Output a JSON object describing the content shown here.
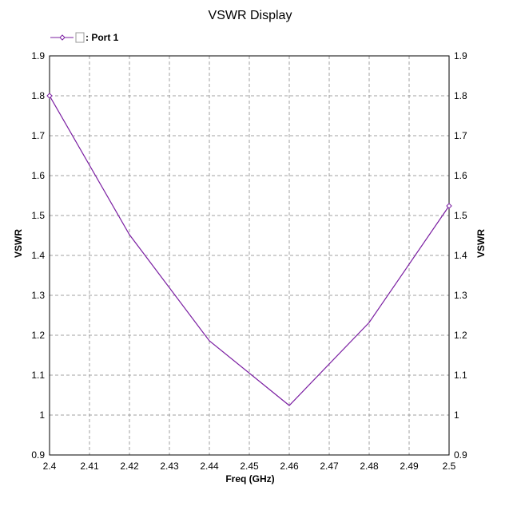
{
  "chart_data": {
    "type": "line",
    "title": "VSWR Display",
    "xlabel": "Freq (GHz)",
    "ylabel": "VSWR",
    "ylabel_right": "VSWR",
    "xlim": [
      2.4,
      2.5
    ],
    "ylim": [
      0.9,
      1.9
    ],
    "x_ticks": [
      "2.4",
      "2.41",
      "2.42",
      "2.43",
      "2.44",
      "2.45",
      "2.46",
      "2.47",
      "2.48",
      "2.49",
      "2.5"
    ],
    "y_ticks": [
      "0.9",
      "1",
      "1.1",
      "1.2",
      "1.3",
      "1.4",
      "1.5",
      "1.6",
      "1.7",
      "1.8",
      "1.9"
    ],
    "grid": true,
    "legend_position": "top-left",
    "series": [
      {
        "name": ": Port 1",
        "color": "#7b1fa2",
        "x": [
          2.4,
          2.42,
          2.44,
          2.46,
          2.48,
          2.5
        ],
        "y": [
          1.8,
          1.452,
          1.186,
          1.024,
          1.232,
          1.524
        ],
        "markers_at": [
          2.4,
          2.5
        ]
      }
    ]
  }
}
